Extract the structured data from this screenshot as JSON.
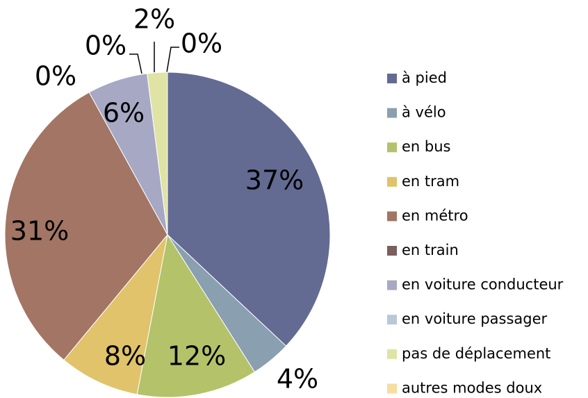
{
  "chart_data": {
    "type": "pie",
    "categories": [
      "à pied",
      "à vélo",
      "en bus",
      "en tram",
      "en métro",
      "en train",
      "en voiture conducteur",
      "en voiture passager",
      "pas de déplacement",
      "autres modes doux"
    ],
    "values": [
      37,
      4,
      12,
      8,
      31,
      0,
      6,
      0,
      2,
      0
    ],
    "value_labels": [
      "37%",
      "4%",
      "12%",
      "8%",
      "31%",
      "0%",
      "6%",
      "0%",
      "2%",
      "0%"
    ],
    "colors": [
      "#636b93",
      "#8a9fb0",
      "#b4c26a",
      "#e0c36a",
      "#a37564",
      "#7a5f5c",
      "#a6a8c4",
      "#b8c8d8",
      "#dfe3a6",
      "#f8dca0"
    ],
    "legend": "right"
  }
}
